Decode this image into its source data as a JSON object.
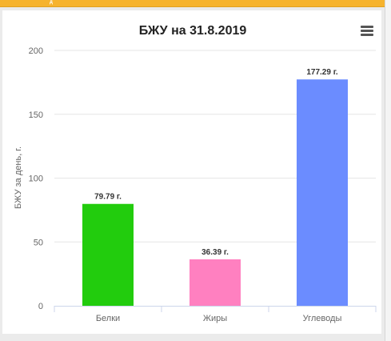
{
  "header": {
    "strip_text": "д"
  },
  "chart_data": {
    "type": "bar",
    "title": "БЖУ на 31.8.2019",
    "xlabel": "",
    "ylabel": "БЖУ за день, г.",
    "categories": [
      "Белки",
      "Жиры",
      "Углеводы"
    ],
    "values": [
      79.79,
      36.39,
      177.29
    ],
    "data_labels": [
      "79.79 г.",
      "36.39 г.",
      "177.29 г."
    ],
    "colors": [
      "#22cc0d",
      "#ff80c0",
      "#6b8cff"
    ],
    "ylim": [
      0,
      200
    ],
    "yticks": [
      "0",
      "50",
      "100",
      "150",
      "200"
    ],
    "grid": true,
    "legend": "none"
  },
  "menu": {
    "icon": "hamburger-menu-icon"
  }
}
